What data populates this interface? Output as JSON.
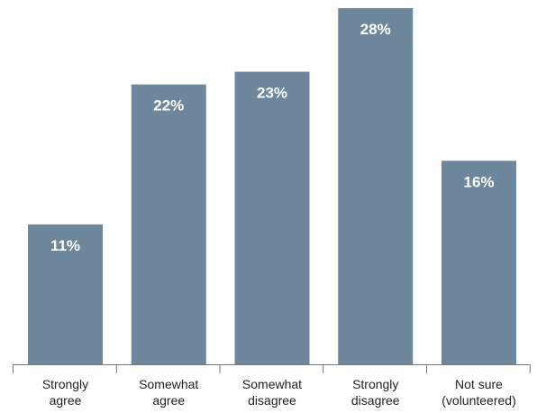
{
  "chart_data": {
    "type": "bar",
    "categories": [
      [
        "Strongly",
        "agree"
      ],
      [
        "Somewhat",
        "agree"
      ],
      [
        "Somewhat",
        "disagree"
      ],
      [
        "Strongly",
        "disagree"
      ],
      [
        "Not sure",
        "(volunteered)"
      ]
    ],
    "values": [
      11,
      22,
      23,
      28,
      16
    ],
    "value_labels": [
      "11%",
      "22%",
      "23%",
      "28%",
      "16%"
    ],
    "ylim": [
      0,
      28
    ],
    "grid": false,
    "legend": "none",
    "colors": {
      "bar": "#6f879c",
      "axis": "#777777",
      "value_label": "#ffffff",
      "category_label": "#222222"
    }
  }
}
